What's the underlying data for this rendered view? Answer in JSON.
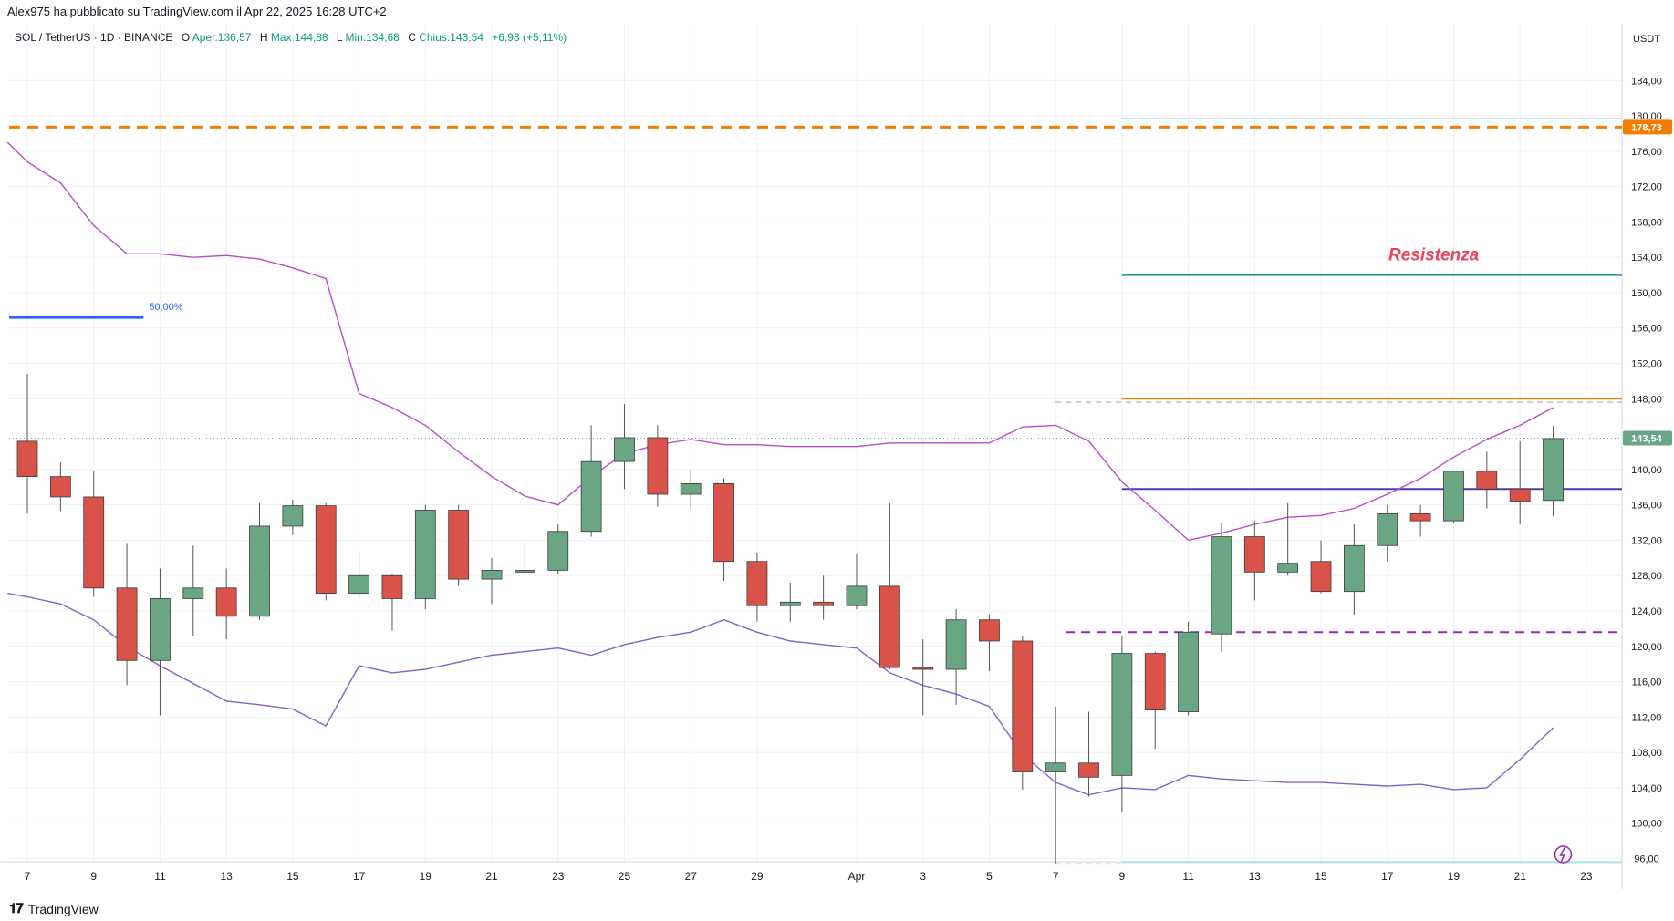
{
  "header": {
    "published": "Alex975 ha pubblicato su TradingView.com il Apr 22, 2025 16:28 UTC+2"
  },
  "legend": {
    "symbol": "SOL / TetherUS · 1D · BINANCE",
    "open_key": "O",
    "open": "Aper.136,57",
    "high_key": "H",
    "high": "Max.144,88",
    "low_key": "L",
    "low": "Min.134,68",
    "close_key": "C",
    "close": "Chius.143,54",
    "change": "+6,98 (+5,11%)"
  },
  "footer": {
    "brand": "TradingView"
  },
  "colors": {
    "up": "#6aa584",
    "down": "#d9534a",
    "band": "#b84dc9",
    "band_low": "#8560c9",
    "grid": "#eef1f5",
    "orange": "#f57c00",
    "teal": "#2a9aa8",
    "navy": "#4b3bb5",
    "light_cyan": "#a9e1ea",
    "magenta_dash": "#9c27b0",
    "blue_fib": "#2962ff"
  },
  "chart_data": {
    "type": "candlestick",
    "currency_label": "USDT",
    "y_ticks": [
      "96,00",
      "100,00",
      "104,00",
      "108,00",
      "112,00",
      "116,00",
      "120,00",
      "124,00",
      "128,00",
      "132,00",
      "136,00",
      "140,00",
      "144,00",
      "148,00",
      "152,00",
      "156,00",
      "160,00",
      "164,00",
      "168,00",
      "172,00",
      "176,00",
      "180,00",
      "184,00"
    ],
    "y_tick_values": [
      96,
      100,
      104,
      108,
      112,
      116,
      120,
      124,
      128,
      132,
      136,
      140,
      144,
      148,
      152,
      156,
      160,
      164,
      168,
      172,
      176,
      180,
      184
    ],
    "x_tick_labels": [
      "7",
      "9",
      "11",
      "13",
      "15",
      "17",
      "19",
      "21",
      "23",
      "25",
      "27",
      "29",
      "Apr",
      "3",
      "5",
      "7",
      "9",
      "11",
      "13",
      "15",
      "17",
      "19",
      "21",
      "23"
    ],
    "x_tick_days": [
      0,
      2,
      4,
      6,
      8,
      10,
      12,
      14,
      16,
      18,
      20,
      22,
      25,
      27,
      29,
      31,
      33,
      35,
      37,
      39,
      41,
      43,
      45,
      47
    ],
    "candles": [
      {
        "d": 0,
        "o": 143.2,
        "h": 150.8,
        "l": 135.0,
        "c": 139.2
      },
      {
        "d": 1,
        "o": 139.2,
        "h": 140.8,
        "l": 135.3,
        "c": 136.9
      },
      {
        "d": 2,
        "o": 136.9,
        "h": 139.8,
        "l": 125.6,
        "c": 126.6
      },
      {
        "d": 3,
        "o": 126.6,
        "h": 131.6,
        "l": 115.6,
        "c": 118.4
      },
      {
        "d": 4,
        "o": 118.4,
        "h": 128.8,
        "l": 112.2,
        "c": 125.4
      },
      {
        "d": 5,
        "o": 125.4,
        "h": 131.4,
        "l": 121.2,
        "c": 126.6
      },
      {
        "d": 6,
        "o": 126.6,
        "h": 128.8,
        "l": 120.8,
        "c": 123.4
      },
      {
        "d": 7,
        "o": 123.4,
        "h": 136.2,
        "l": 123.0,
        "c": 133.6
      },
      {
        "d": 8,
        "o": 133.6,
        "h": 136.6,
        "l": 132.6,
        "c": 135.9
      },
      {
        "d": 9,
        "o": 135.9,
        "h": 136.2,
        "l": 125.2,
        "c": 126.0
      },
      {
        "d": 10,
        "o": 126.0,
        "h": 130.6,
        "l": 125.4,
        "c": 128.0
      },
      {
        "d": 11,
        "o": 128.0,
        "h": 128.2,
        "l": 121.8,
        "c": 125.4
      },
      {
        "d": 12,
        "o": 125.4,
        "h": 136.0,
        "l": 124.2,
        "c": 135.4
      },
      {
        "d": 13,
        "o": 135.4,
        "h": 136.0,
        "l": 126.8,
        "c": 127.6
      },
      {
        "d": 14,
        "o": 127.6,
        "h": 130.0,
        "l": 124.8,
        "c": 128.6
      },
      {
        "d": 15,
        "o": 128.6,
        "h": 131.8,
        "l": 128.2,
        "c": 128.6
      },
      {
        "d": 16,
        "o": 128.6,
        "h": 133.8,
        "l": 128.2,
        "c": 133.0
      },
      {
        "d": 17,
        "o": 133.0,
        "h": 145.0,
        "l": 132.4,
        "c": 140.9
      },
      {
        "d": 18,
        "o": 140.9,
        "h": 147.4,
        "l": 137.8,
        "c": 143.6
      },
      {
        "d": 19,
        "o": 143.6,
        "h": 145.0,
        "l": 135.8,
        "c": 137.2
      },
      {
        "d": 20,
        "o": 137.2,
        "h": 140.0,
        "l": 135.6,
        "c": 138.4
      },
      {
        "d": 21,
        "o": 138.4,
        "h": 139.0,
        "l": 127.4,
        "c": 129.6
      },
      {
        "d": 22,
        "o": 129.6,
        "h": 130.6,
        "l": 122.8,
        "c": 124.6
      },
      {
        "d": 23,
        "o": 124.6,
        "h": 127.2,
        "l": 122.8,
        "c": 125.0
      },
      {
        "d": 24,
        "o": 125.0,
        "h": 128.0,
        "l": 123.0,
        "c": 124.6
      },
      {
        "d": 25,
        "o": 124.6,
        "h": 130.4,
        "l": 124.2,
        "c": 126.8
      },
      {
        "d": 26,
        "o": 126.8,
        "h": 136.2,
        "l": 117.4,
        "c": 117.6
      },
      {
        "d": 27,
        "o": 117.6,
        "h": 120.8,
        "l": 112.2,
        "c": 117.4
      },
      {
        "d": 28,
        "o": 117.4,
        "h": 124.2,
        "l": 113.4,
        "c": 123.0
      },
      {
        "d": 29,
        "o": 123.0,
        "h": 123.6,
        "l": 117.2,
        "c": 120.6
      },
      {
        "d": 30,
        "o": 120.6,
        "h": 121.2,
        "l": 103.8,
        "c": 105.8
      },
      {
        "d": 31,
        "o": 105.8,
        "h": 113.2,
        "l": 95.4,
        "c": 106.8
      },
      {
        "d": 32,
        "o": 106.8,
        "h": 112.6,
        "l": 103.0,
        "c": 105.2
      },
      {
        "d": 33,
        "o": 105.4,
        "h": 121.2,
        "l": 101.2,
        "c": 119.2
      },
      {
        "d": 34,
        "o": 119.2,
        "h": 119.4,
        "l": 108.4,
        "c": 112.8
      },
      {
        "d": 35,
        "o": 112.6,
        "h": 122.8,
        "l": 112.2,
        "c": 121.6
      },
      {
        "d": 36,
        "o": 121.4,
        "h": 134.0,
        "l": 119.4,
        "c": 132.4
      },
      {
        "d": 37,
        "o": 132.4,
        "h": 134.2,
        "l": 125.2,
        "c": 128.4
      },
      {
        "d": 38,
        "o": 128.4,
        "h": 136.2,
        "l": 128.0,
        "c": 129.4
      },
      {
        "d": 39,
        "o": 129.6,
        "h": 132.0,
        "l": 126.0,
        "c": 126.2
      },
      {
        "d": 40,
        "o": 126.2,
        "h": 133.8,
        "l": 123.6,
        "c": 131.4
      },
      {
        "d": 41,
        "o": 131.4,
        "h": 136.0,
        "l": 129.6,
        "c": 135.0
      },
      {
        "d": 42,
        "o": 135.0,
        "h": 136.0,
        "l": 132.4,
        "c": 134.2
      },
      {
        "d": 43,
        "o": 134.2,
        "h": 139.8,
        "l": 134.0,
        "c": 139.8
      },
      {
        "d": 44,
        "o": 139.8,
        "h": 142.0,
        "l": 135.6,
        "c": 137.8
      },
      {
        "d": 45,
        "o": 137.8,
        "h": 143.2,
        "l": 133.8,
        "c": 136.4
      },
      {
        "d": 46,
        "o": 136.5,
        "h": 144.9,
        "l": 134.7,
        "c": 143.5
      }
    ],
    "upper_band": [
      [
        -0.6,
        177.0
      ],
      [
        0,
        174.8
      ],
      [
        1,
        172.4
      ],
      [
        2,
        167.6
      ],
      [
        3,
        164.4
      ],
      [
        4,
        164.4
      ],
      [
        5,
        164.0
      ],
      [
        6,
        164.2
      ],
      [
        7,
        163.8
      ],
      [
        8,
        162.8
      ],
      [
        9,
        161.6
      ],
      [
        10,
        148.6
      ],
      [
        11,
        147.0
      ],
      [
        12,
        145.0
      ],
      [
        13,
        142.0
      ],
      [
        14,
        139.2
      ],
      [
        15,
        137.0
      ],
      [
        16,
        136.0
      ],
      [
        17,
        139.2
      ],
      [
        18,
        141.8
      ],
      [
        19,
        142.8
      ],
      [
        20,
        143.4
      ],
      [
        21,
        142.8
      ],
      [
        22,
        142.8
      ],
      [
        23,
        142.6
      ],
      [
        24,
        142.6
      ],
      [
        25,
        142.6
      ],
      [
        26,
        143.0
      ],
      [
        27,
        143.0
      ],
      [
        28,
        143.0
      ],
      [
        29,
        143.0
      ],
      [
        30,
        144.8
      ],
      [
        31,
        145.0
      ],
      [
        32,
        143.2
      ],
      [
        33,
        138.6
      ],
      [
        34,
        135.4
      ],
      [
        35,
        132.0
      ],
      [
        36,
        132.8
      ],
      [
        37,
        133.8
      ],
      [
        38,
        134.6
      ],
      [
        39,
        134.8
      ],
      [
        40,
        135.6
      ],
      [
        41,
        137.2
      ],
      [
        42,
        139.0
      ],
      [
        43,
        141.4
      ],
      [
        44,
        143.4
      ],
      [
        45,
        145.0
      ],
      [
        46,
        147.0
      ]
    ],
    "lower_band": [
      [
        -0.6,
        126.0
      ],
      [
        0,
        125.6
      ],
      [
        1,
        124.8
      ],
      [
        2,
        123.0
      ],
      [
        3,
        120.0
      ],
      [
        4,
        117.8
      ],
      [
        5,
        115.8
      ],
      [
        6,
        113.8
      ],
      [
        7,
        113.4
      ],
      [
        8,
        112.9
      ],
      [
        9,
        111.0
      ],
      [
        10,
        117.8
      ],
      [
        11,
        117.0
      ],
      [
        12,
        117.4
      ],
      [
        13,
        118.2
      ],
      [
        14,
        119.0
      ],
      [
        15,
        119.4
      ],
      [
        16,
        119.8
      ],
      [
        17,
        119.0
      ],
      [
        18,
        120.2
      ],
      [
        19,
        121.0
      ],
      [
        20,
        121.6
      ],
      [
        21,
        123.0
      ],
      [
        22,
        121.6
      ],
      [
        23,
        120.6
      ],
      [
        24,
        120.2
      ],
      [
        25,
        119.8
      ],
      [
        26,
        117.0
      ],
      [
        27,
        115.6
      ],
      [
        28,
        114.6
      ],
      [
        29,
        113.2
      ],
      [
        30,
        107.8
      ],
      [
        31,
        104.6
      ],
      [
        32,
        103.2
      ],
      [
        33,
        104.0
      ],
      [
        34,
        103.8
      ],
      [
        35,
        105.4
      ],
      [
        36,
        105.0
      ],
      [
        37,
        104.8
      ],
      [
        38,
        104.6
      ],
      [
        39,
        104.6
      ],
      [
        40,
        104.4
      ],
      [
        41,
        104.2
      ],
      [
        42,
        104.4
      ],
      [
        43,
        103.8
      ],
      [
        44,
        104.0
      ],
      [
        45,
        107.2
      ],
      [
        46,
        110.8
      ]
    ],
    "resistance_label": "Resistenza",
    "resistance_level": 162.0,
    "fib_label": "50,00%",
    "fib_level": 157.2,
    "dashed_orange_level": 178.73,
    "dashed_orange_tag": "178,73",
    "current_price_tag": "143,54",
    "current_price": 143.54,
    "orange_level": 148.0,
    "navy_level": 137.8,
    "magenta_dash_level": 121.6,
    "upper_cyan_level": 179.7,
    "lower_cyan_level": 95.6,
    "grey_dash_upper": 147.6,
    "grey_dash_lower": 95.4
  }
}
